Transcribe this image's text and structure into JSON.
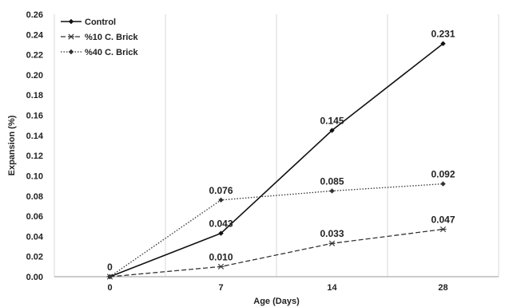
{
  "chart_data": {
    "type": "line",
    "categories": [
      "0",
      "7",
      "14",
      "28"
    ],
    "series": [
      {
        "name": "Control",
        "values": [
          0,
          0.043,
          0.145,
          0.231
        ],
        "labels": [
          "0",
          "0.043",
          "0.145",
          "0.231"
        ],
        "color": "#111111",
        "dash": "solid",
        "marker": "diamond"
      },
      {
        "name": "%10 C. Brick",
        "values": [
          0,
          0.01,
          0.033,
          0.047
        ],
        "labels": [
          "",
          "0.010",
          "0.033",
          "0.047"
        ],
        "color": "#333333",
        "dash": "dashed",
        "marker": "star"
      },
      {
        "name": "%40 C. Brick",
        "values": [
          0,
          0.076,
          0.085,
          0.092
        ],
        "labels": [
          "",
          "0.076",
          "0.085",
          "0.092"
        ],
        "color": "#333333",
        "dash": "dotted",
        "marker": "diamond"
      }
    ],
    "xlabel": "Age (Days)",
    "ylabel": "Expansion (%)",
    "ylim": [
      0,
      0.26
    ],
    "yticks": [
      "0.00",
      "0.02",
      "0.04",
      "0.06",
      "0.08",
      "0.10",
      "0.12",
      "0.14",
      "0.16",
      "0.18",
      "0.20",
      "0.22",
      "0.24",
      "0.26"
    ],
    "grid": "vertical",
    "legend": "top-left"
  }
}
